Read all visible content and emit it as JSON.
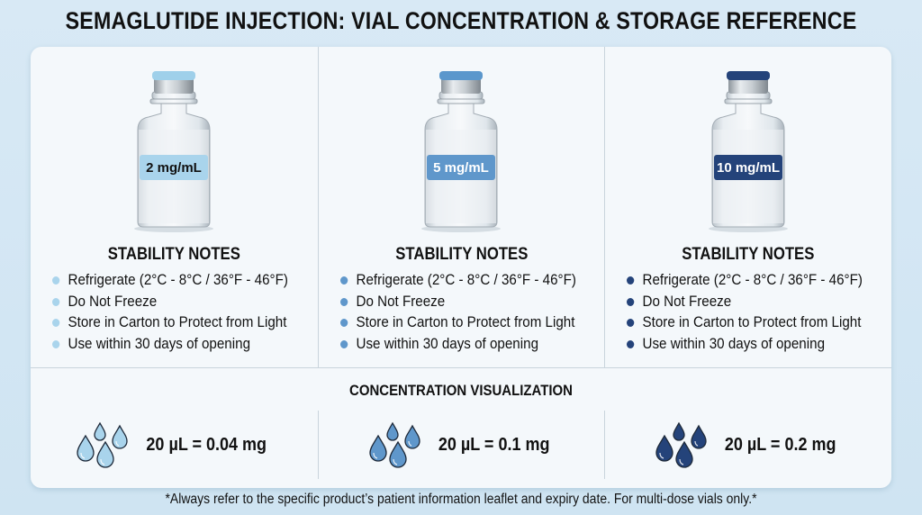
{
  "title": "SEMAGLUTIDE INJECTION: VIAL CONCENTRATION & STORAGE REFERENCE",
  "vials": [
    {
      "concentration": "2 mg/mL",
      "cap_color": "#9fd0ea",
      "label_color": "#a9d4ec",
      "label_text_color": "#111111",
      "bullet_color": "#a9d4ec",
      "stability_title": "STABILITY NOTES",
      "notes": [
        "Refrigerate (2°C - 8°C / 36°F - 46°F)",
        "Do Not Freeze",
        "Store in Carton to Protect from Light",
        "Use within 30 days of opening"
      ]
    },
    {
      "concentration": "5 mg/mL",
      "cap_color": "#5b97cc",
      "label_color": "#5f97cb",
      "label_text_color": "#ffffff",
      "bullet_color": "#5f97cb",
      "stability_title": "STABILITY NOTES",
      "notes": [
        "Refrigerate (2°C - 8°C / 36°F - 46°F)",
        "Do Not Freeze",
        "Store in Carton to Protect from Light",
        "Use within 30 days of opening"
      ]
    },
    {
      "concentration": "10 mg/mL",
      "cap_color": "#24437a",
      "label_color": "#24437a",
      "label_text_color": "#ffffff",
      "bullet_color": "#24437a",
      "stability_title": "STABILITY NOTES",
      "notes": [
        "Refrigerate (2°C - 8°C / 36°F - 46°F)",
        "Do Not Freeze",
        "Store in Carton to Protect from Light",
        "Use within 30 days of opening"
      ]
    }
  ],
  "visualization": {
    "title": "CONCENTRATION VISUALIZATION",
    "items": [
      {
        "text": "20 µL = 0.04 mg",
        "drop_color": "#a9d4ec",
        "icon": "water-drops-icon"
      },
      {
        "text": "20 µL = 0.1 mg",
        "drop_color": "#5f97cb",
        "icon": "water-drops-icon"
      },
      {
        "text": "20 µL = 0.2 mg",
        "drop_color": "#24437a",
        "icon": "water-drops-icon"
      }
    ]
  },
  "footer": "*Always refer to the specific product’s patient information leaflet and expiry date. For multi-dose vials only.*"
}
